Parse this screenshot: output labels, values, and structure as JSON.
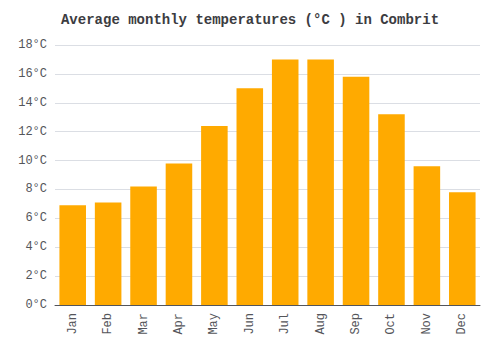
{
  "chart_data": {
    "type": "bar",
    "title": "Average monthly temperatures (°C ) in Combrit",
    "categories": [
      "Jan",
      "Feb",
      "Mar",
      "Apr",
      "May",
      "Jun",
      "Jul",
      "Aug",
      "Sep",
      "Oct",
      "Nov",
      "Dec"
    ],
    "values": [
      6.9,
      7.1,
      8.2,
      9.8,
      12.4,
      15.0,
      17.0,
      17.0,
      15.8,
      13.2,
      9.6,
      7.8
    ],
    "color": "#FFAA00",
    "ylim": [
      0,
      18
    ],
    "yticks": [
      {
        "value": 0,
        "label": "0°C"
      },
      {
        "value": 2,
        "label": "2°C"
      },
      {
        "value": 4,
        "label": "4°C"
      },
      {
        "value": 6,
        "label": "6°C"
      },
      {
        "value": 8,
        "label": "8°C"
      },
      {
        "value": 10,
        "label": "10°C"
      },
      {
        "value": 12,
        "label": "12°C"
      },
      {
        "value": 14,
        "label": "14°C"
      },
      {
        "value": 16,
        "label": "16°C"
      },
      {
        "value": 18,
        "label": "18°C"
      }
    ],
    "grid": true
  }
}
